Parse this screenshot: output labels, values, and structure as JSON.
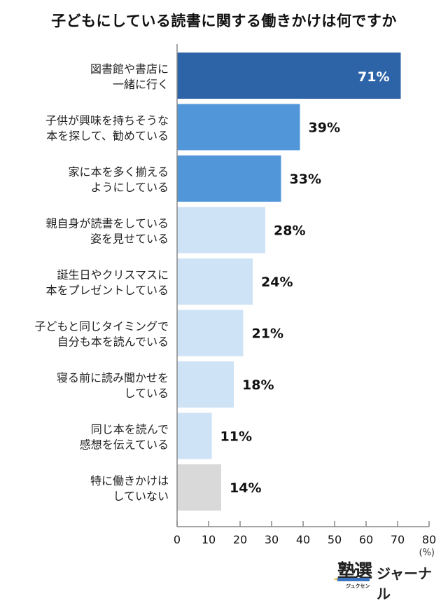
{
  "chart_data": {
    "type": "bar",
    "orientation": "horizontal",
    "title": "子どもにしている読書に関する働きかけは何ですか",
    "categories": [
      [
        "図書館や書店に",
        "一緒に行く"
      ],
      [
        "子供が興味を持ちそうな",
        "本を探して、勧めている"
      ],
      [
        "家に本を多く揃える",
        "ようにしている"
      ],
      [
        "親自身が読書をしている",
        "姿を見せている"
      ],
      [
        "誕生日やクリスマスに",
        "本をプレゼントしている"
      ],
      [
        "子どもと同じタイミングで",
        "自分も本を読んでいる"
      ],
      [
        "寝る前に読み聞かせを",
        "している"
      ],
      [
        "同じ本を読んで",
        "感想を伝えている"
      ],
      [
        "特に働きかけは",
        "していない"
      ]
    ],
    "values": [
      71,
      39,
      33,
      28,
      24,
      21,
      18,
      11,
      14
    ],
    "value_labels": [
      "71%",
      "39%",
      "33%",
      "28%",
      "24%",
      "21%",
      "18%",
      "11%",
      "14%"
    ],
    "colors": [
      "#2d64a8",
      "#5096d9",
      "#5096d9",
      "#cfe3f7",
      "#cfe3f7",
      "#cfe3f7",
      "#cfe3f7",
      "#cfe3f7",
      "#d9d9d9"
    ],
    "xlim": [
      0,
      80
    ],
    "xticks": [
      "0",
      "10",
      "20",
      "30",
      "40",
      "50",
      "60",
      "70",
      "80"
    ],
    "xunit": "(%)",
    "grid": false
  },
  "logo": {
    "kanji": "塾選",
    "ruby": "ジュクセン",
    "text": "ジャーナル"
  }
}
